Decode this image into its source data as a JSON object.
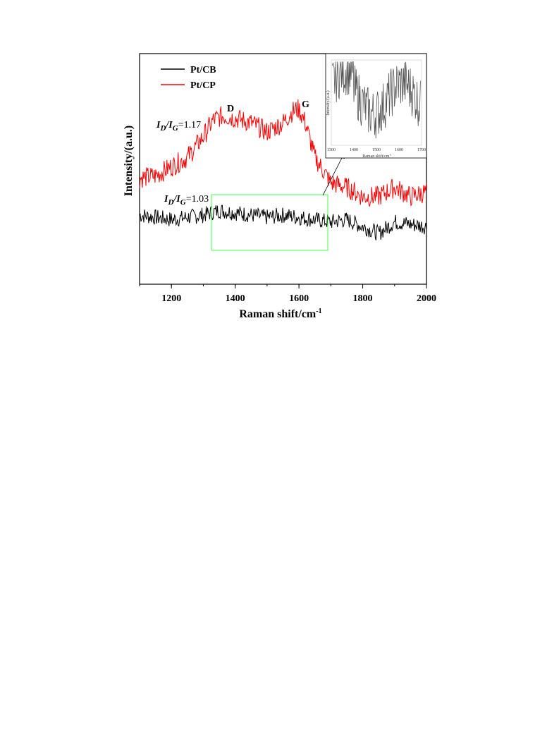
{
  "chart_data": {
    "type": "line",
    "xlabel": "Raman shift/cm",
    "xlabel_sup": "-1",
    "ylabel": "Intensity/(a.u.)",
    "xlim": [
      1100,
      2000
    ],
    "ylim": [
      0,
      100
    ],
    "x_ticks": [
      "1200",
      "1400",
      "1600",
      "1800",
      "2000"
    ],
    "grid": false,
    "legend_position": "top-left",
    "series": [
      {
        "name": "Pt/CB",
        "color": "#000000",
        "x": [
          1100,
          1150,
          1200,
          1250,
          1300,
          1350,
          1400,
          1450,
          1500,
          1550,
          1600,
          1650,
          1700,
          1750,
          1800,
          1850,
          1900,
          1950,
          2000
        ],
        "y": [
          30,
          29,
          28,
          29,
          30,
          32,
          31,
          30,
          29,
          30,
          29,
          28,
          27,
          28,
          25,
          22,
          27,
          26,
          25
        ]
      },
      {
        "name": "Pt/CP",
        "color": "#ff0000",
        "x": [
          1100,
          1150,
          1200,
          1250,
          1300,
          1330,
          1360,
          1400,
          1450,
          1500,
          1550,
          1580,
          1600,
          1620,
          1650,
          1700,
          1750,
          1800,
          1850,
          1900,
          1950,
          2000
        ],
        "y": [
          46,
          47,
          51,
          55,
          64,
          71,
          73,
          72,
          70,
          66,
          70,
          75,
          76,
          70,
          55,
          44,
          42,
          38,
          38,
          42,
          38,
          40
        ]
      }
    ],
    "annotations": {
      "peak_d": "D",
      "peak_g": "G",
      "ratio_cp": {
        "i": "I",
        "d": "D",
        "slash": "/",
        "g": "G",
        "value": "=1.17"
      },
      "ratio_cb": {
        "i": "I",
        "d": "D",
        "slash": "/",
        "g": "G",
        "value": "=1.03"
      }
    },
    "inset": {
      "ylabel": "Intensity/(a.u.)",
      "xlabel": "Raman shift/cm",
      "xlabel_sup": "-1",
      "xlim": [
        1300,
        1700
      ],
      "x_ticks": [
        "1300",
        "1400",
        "1500",
        "1600",
        "1700"
      ],
      "series_color": "#555555"
    },
    "highlight_box_color": "#44ff44"
  }
}
